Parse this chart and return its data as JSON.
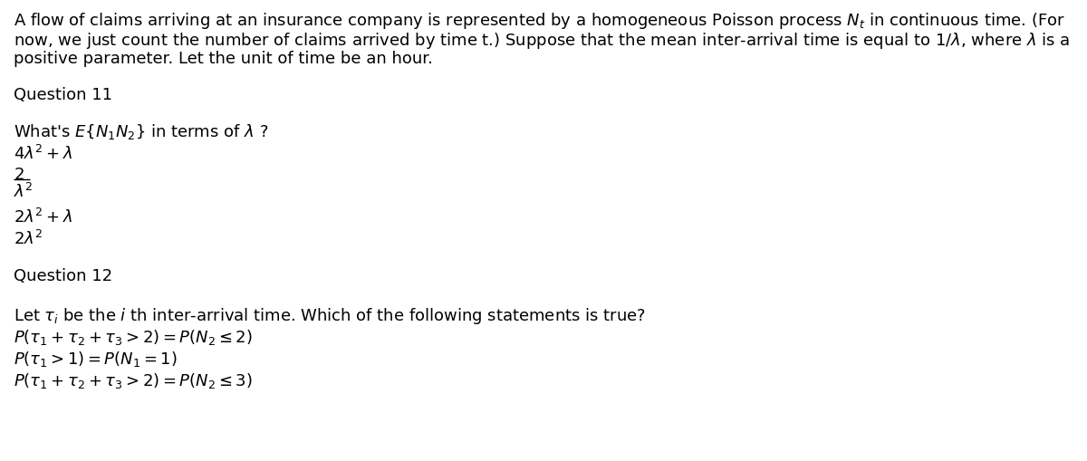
{
  "bg_color": "#ffffff",
  "text_color": "#000000",
  "figsize": [
    12.0,
    5.1
  ],
  "dpi": 100,
  "intro_line1": "A flow of claims arriving at an insurance company is represented by a homogeneous Poisson process $N_t$ in continuous time. (For",
  "intro_line2": "now, we just count the number of claims arrived by time t.) Suppose that the mean inter-arrival time is equal to $1/\\lambda$, where $\\lambda$ is a",
  "intro_line3": "positive parameter. Let the unit of time be an hour.",
  "q11_label": "Question 11",
  "q11_prompt": "What's $E\\{N_1 N_2\\}$ in terms of $\\lambda$ ?",
  "q11_opt1": "$4\\lambda^2 + \\lambda$",
  "q11_opt2_num": "$2$",
  "q11_opt2_den": "$\\lambda^2$",
  "q11_opt3": "$2\\lambda^2 + \\lambda$",
  "q11_opt4": "$2\\lambda^2$",
  "q12_label": "Question 12",
  "q12_prompt": "Let $\\tau_i$ be the $i$ th inter-arrival time. Which of the following statements is true?",
  "q12_opt1": "$P(\\tau_1 + \\tau_2 + \\tau_3 > 2) = P(N_2 \\leq 2)$",
  "q12_opt2": "$P(\\tau_1 > 1) = P(N_1 = 1)$",
  "q12_opt3": "$P(\\tau_1 + \\tau_2 + \\tau_3 > 2) = P(N_2 \\leq 3)$",
  "font_size": 13.0
}
